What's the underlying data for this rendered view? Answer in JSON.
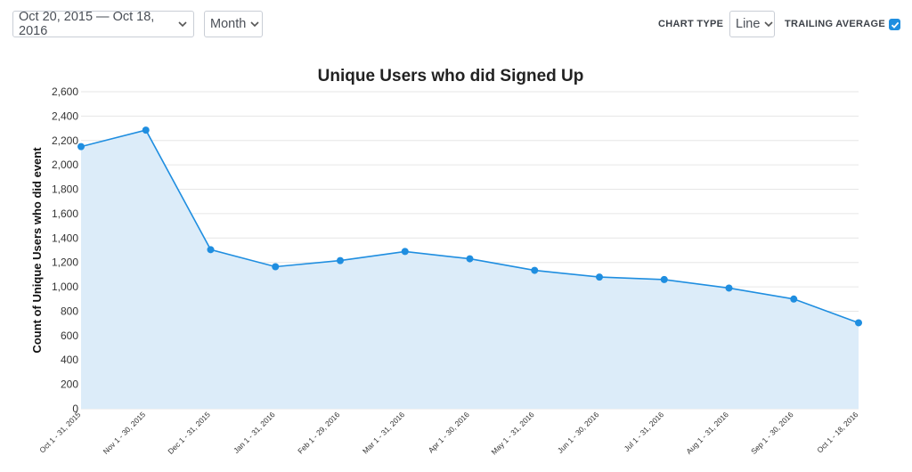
{
  "toolbar": {
    "date_range": "Oct 20, 2015 — Oct 18, 2016",
    "interval": "Month",
    "chart_type_label": "CHART TYPE",
    "chart_type_value": "Line",
    "trailing_average_label": "TRAILING AVERAGE",
    "trailing_average_checked": true
  },
  "colors": {
    "line": "#1f8ee0",
    "area": "#dcecf9",
    "grid": "#e6e6e6",
    "accent": "#1f8ee0"
  },
  "chart_data": {
    "type": "area",
    "title": "Unique Users who did Signed Up",
    "xlabel": "",
    "ylabel": "Count of Unique Users who did event",
    "categories": [
      "Oct 1 - 31, 2015",
      "Nov 1 - 30, 2015",
      "Dec 1 - 31, 2015",
      "Jan 1 - 31, 2016",
      "Feb 1 - 29, 2016",
      "Mar 1 - 31, 2016",
      "Apr 1 - 30, 2016",
      "May 1 - 31, 2016",
      "Jun 1 - 30, 2016",
      "Jul 1 - 31, 2016",
      "Aug 1 - 31, 2016",
      "Sep 1 - 30, 2016",
      "Oct 1 - 18, 2016"
    ],
    "series": [
      {
        "values": [
          2150,
          2285,
          1305,
          1165,
          1215,
          1290,
          1230,
          1135,
          1080,
          1060,
          990,
          900,
          705
        ]
      }
    ],
    "yticks": [
      "0",
      "200",
      "400",
      "600",
      "800",
      "1,000",
      "1,200",
      "1,400",
      "1,600",
      "1,800",
      "2,000",
      "2,200",
      "2,400",
      "2,600"
    ],
    "ylim": [
      0,
      2600
    ],
    "grid": true,
    "legend": "none"
  }
}
